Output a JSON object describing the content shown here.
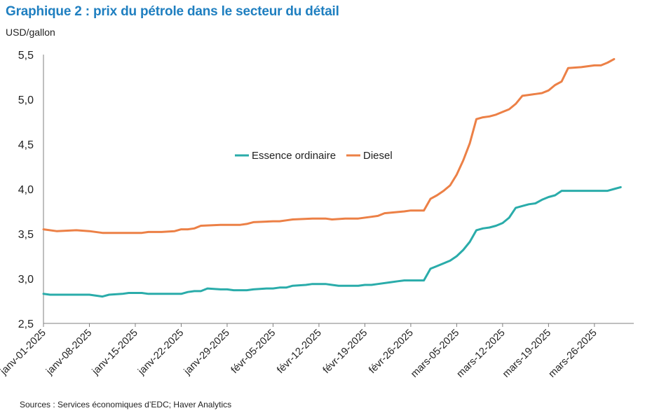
{
  "header": {
    "title": "Graphique 2 : prix du pétrole dans le secteur du détail",
    "unit": "USD/gallon"
  },
  "footer": {
    "source": "Sources : Services économiques d’EDC; Haver Analytics"
  },
  "chart_data": {
    "type": "line",
    "title": "Graphique 2 : prix du pétrole dans le secteur du détail",
    "ylabel": "USD/gallon",
    "xlabel": "",
    "ylim": [
      2.5,
      5.5
    ],
    "yticks": [
      "2,5",
      "3,0",
      "3,5",
      "4,0",
      "4,5",
      "5,0",
      "5,5"
    ],
    "ytick_values": [
      2.5,
      3.0,
      3.5,
      4.0,
      4.5,
      5.0,
      5.5
    ],
    "xticks": [
      "janv-01-2025",
      "janv-08-2025",
      "janv-15-2025",
      "janv-22-2025",
      "janv-29-2025",
      "févr-05-2025",
      "févr-12-2025",
      "févr-19-2025",
      "févr-26-2025",
      "mars-05-2025",
      "mars-12-2025",
      "mars-19-2025",
      "mars-26-2025"
    ],
    "xrange_days": [
      0,
      90
    ],
    "grid": false,
    "legend_position": "center",
    "series": [
      {
        "name": "Essence ordinaire",
        "color": "#2aacaa",
        "points": [
          [
            0,
            2.83
          ],
          [
            1,
            2.82
          ],
          [
            3,
            2.82
          ],
          [
            5,
            2.82
          ],
          [
            7,
            2.82
          ],
          [
            9,
            2.8
          ],
          [
            10,
            2.82
          ],
          [
            12,
            2.83
          ],
          [
            13,
            2.84
          ],
          [
            15,
            2.84
          ],
          [
            16,
            2.83
          ],
          [
            18,
            2.83
          ],
          [
            21,
            2.83
          ],
          [
            22,
            2.85
          ],
          [
            23,
            2.86
          ],
          [
            24,
            2.86
          ],
          [
            25,
            2.89
          ],
          [
            27,
            2.88
          ],
          [
            28,
            2.88
          ],
          [
            29,
            2.87
          ],
          [
            31,
            2.87
          ],
          [
            32,
            2.88
          ],
          [
            34,
            2.89
          ],
          [
            35,
            2.89
          ],
          [
            36,
            2.9
          ],
          [
            37,
            2.9
          ],
          [
            38,
            2.92
          ],
          [
            40,
            2.93
          ],
          [
            41,
            2.94
          ],
          [
            43,
            2.94
          ],
          [
            44,
            2.93
          ],
          [
            45,
            2.92
          ],
          [
            47,
            2.92
          ],
          [
            48,
            2.92
          ],
          [
            49,
            2.93
          ],
          [
            50,
            2.93
          ],
          [
            51,
            2.94
          ],
          [
            53,
            2.96
          ],
          [
            54,
            2.97
          ],
          [
            55,
            2.98
          ],
          [
            58,
            2.98
          ],
          [
            59,
            3.11
          ],
          [
            60,
            3.14
          ],
          [
            61,
            3.17
          ],
          [
            62,
            3.2
          ],
          [
            63,
            3.25
          ],
          [
            64,
            3.32
          ],
          [
            65,
            3.41
          ],
          [
            66,
            3.54
          ],
          [
            67,
            3.56
          ],
          [
            68,
            3.57
          ],
          [
            69,
            3.59
          ],
          [
            70,
            3.62
          ],
          [
            71,
            3.68
          ],
          [
            72,
            3.79
          ],
          [
            73,
            3.81
          ],
          [
            74,
            3.83
          ],
          [
            75,
            3.84
          ],
          [
            76,
            3.88
          ],
          [
            77,
            3.91
          ],
          [
            78,
            3.93
          ],
          [
            79,
            3.98
          ],
          [
            85,
            3.98
          ],
          [
            86,
            3.98
          ],
          [
            87,
            4.0
          ],
          [
            88,
            4.02
          ]
        ]
      },
      {
        "name": "Diesel",
        "color": "#ec8046",
        "points": [
          [
            0,
            3.55
          ],
          [
            2,
            3.53
          ],
          [
            5,
            3.54
          ],
          [
            7,
            3.53
          ],
          [
            9,
            3.51
          ],
          [
            10,
            3.51
          ],
          [
            15,
            3.51
          ],
          [
            16,
            3.52
          ],
          [
            18,
            3.52
          ],
          [
            20,
            3.53
          ],
          [
            21,
            3.55
          ],
          [
            22,
            3.55
          ],
          [
            23,
            3.56
          ],
          [
            24,
            3.59
          ],
          [
            27,
            3.6
          ],
          [
            30,
            3.6
          ],
          [
            31,
            3.61
          ],
          [
            32,
            3.63
          ],
          [
            35,
            3.64
          ],
          [
            36,
            3.64
          ],
          [
            37,
            3.65
          ],
          [
            38,
            3.66
          ],
          [
            41,
            3.67
          ],
          [
            43,
            3.67
          ],
          [
            44,
            3.66
          ],
          [
            46,
            3.67
          ],
          [
            48,
            3.67
          ],
          [
            50,
            3.69
          ],
          [
            51,
            3.7
          ],
          [
            52,
            3.73
          ],
          [
            55,
            3.75
          ],
          [
            56,
            3.76
          ],
          [
            58,
            3.76
          ],
          [
            59,
            3.89
          ],
          [
            60,
            3.93
          ],
          [
            61,
            3.98
          ],
          [
            62,
            4.04
          ],
          [
            63,
            4.16
          ],
          [
            64,
            4.32
          ],
          [
            65,
            4.51
          ],
          [
            66,
            4.78
          ],
          [
            67,
            4.8
          ],
          [
            68,
            4.81
          ],
          [
            69,
            4.83
          ],
          [
            70,
            4.86
          ],
          [
            71,
            4.89
          ],
          [
            72,
            4.95
          ],
          [
            73,
            5.04
          ],
          [
            74,
            5.05
          ],
          [
            75,
            5.06
          ],
          [
            76,
            5.07
          ],
          [
            77,
            5.1
          ],
          [
            78,
            5.16
          ],
          [
            79,
            5.2
          ],
          [
            80,
            5.35
          ],
          [
            82,
            5.36
          ],
          [
            83,
            5.37
          ],
          [
            84,
            5.38
          ],
          [
            85,
            5.38
          ],
          [
            86,
            5.41
          ],
          [
            87,
            5.45
          ]
        ]
      }
    ]
  }
}
